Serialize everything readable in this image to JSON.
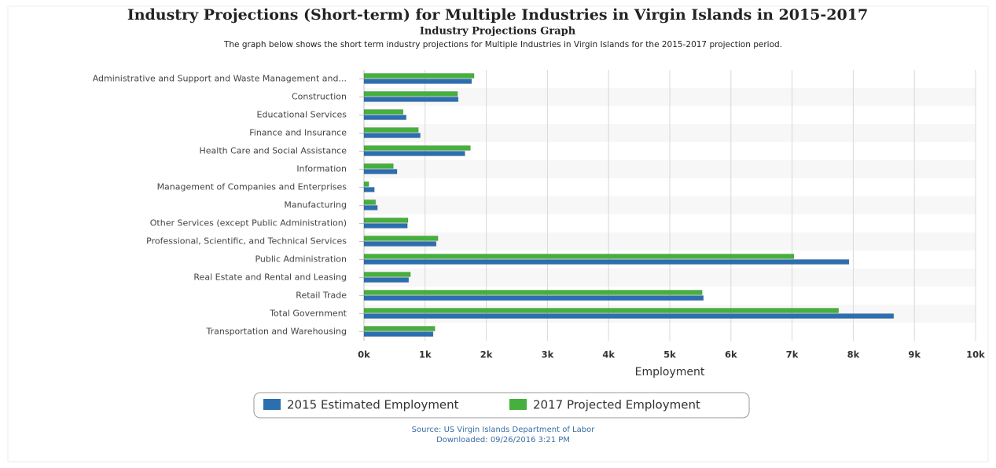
{
  "chart_data": {
    "type": "bar",
    "orientation": "horizontal",
    "title": "Industry Projections (Short-term) for Multiple Industries in Virgin Islands in 2015-2017",
    "subtitle": "Industry Projections Graph",
    "description": "The graph below shows the short term industry projections for Multiple Industries in Virgin Islands for the 2015-2017 projection period.",
    "x_label": "Employment",
    "categories": [
      "Administrative and Support and Waste Management and...",
      "Construction",
      "Educational Services",
      "Finance and Insurance",
      "Health Care and Social Assistance",
      "Information",
      "Management of Companies and Enterprises",
      "Manufacturing",
      "Other Services (except Public Administration)",
      "Professional, Scientific, and Technical Services",
      "Public Administration",
      "Real Estate and Rental and Leasing",
      "Retail Trade",
      "Total Government",
      "Transportation and Warehousing"
    ],
    "series": [
      {
        "name": "2015 Estimated Employment",
        "color": "#2b6fb0",
        "values": [
          1760,
          1540,
          690,
          920,
          1650,
          540,
          170,
          220,
          710,
          1180,
          7930,
          730,
          5550,
          8660,
          1130
        ]
      },
      {
        "name": "2017 Projected Employment",
        "color": "#45b03c",
        "values": [
          1800,
          1530,
          640,
          890,
          1740,
          480,
          80,
          190,
          720,
          1210,
          7030,
          760,
          5530,
          7760,
          1160
        ]
      }
    ],
    "xlim": [
      0,
      10000
    ],
    "xticks": [
      {
        "value": 0,
        "label": "0k"
      },
      {
        "value": 1000,
        "label": "1k"
      },
      {
        "value": 2000,
        "label": "2k"
      },
      {
        "value": 3000,
        "label": "3k"
      },
      {
        "value": 4000,
        "label": "4k"
      },
      {
        "value": 5000,
        "label": "5k"
      },
      {
        "value": 6000,
        "label": "6k"
      },
      {
        "value": 7000,
        "label": "7k"
      },
      {
        "value": 8000,
        "label": "8k"
      },
      {
        "value": 9000,
        "label": "9k"
      },
      {
        "value": 10000,
        "label": "10k"
      }
    ],
    "grid": true,
    "legend": "bottom",
    "source": "Source: US Virgin Islands Department of Labor",
    "downloaded": "Downloaded: 09/26/2016 3:21 PM"
  }
}
